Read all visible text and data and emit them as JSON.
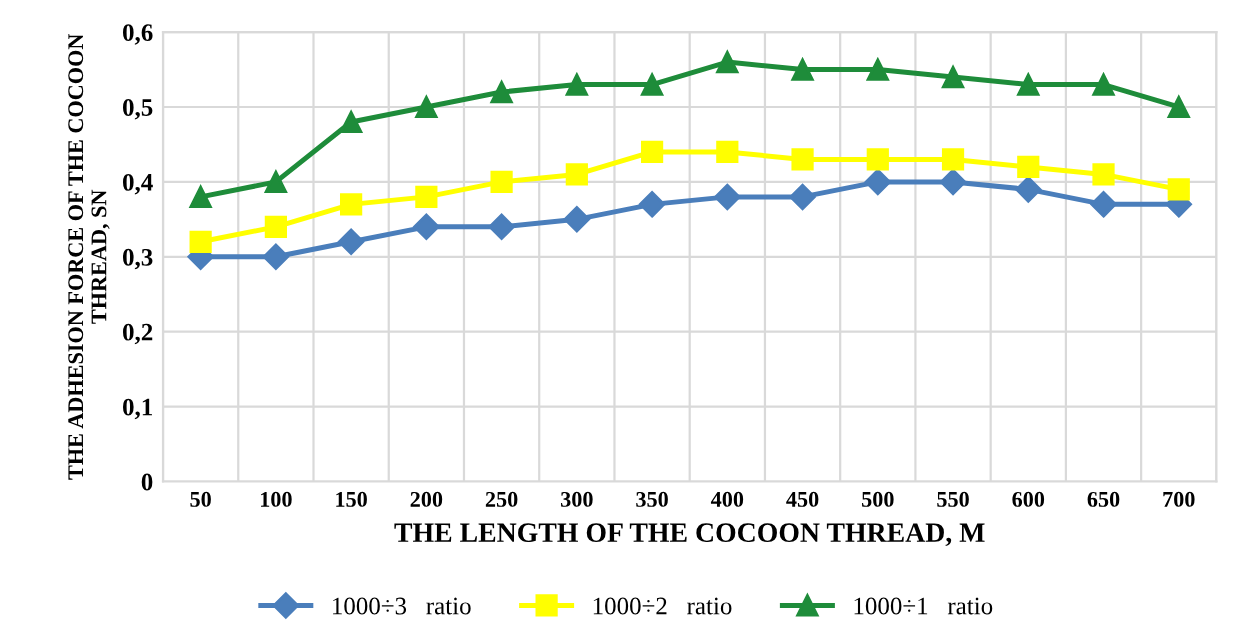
{
  "chart_data": {
    "type": "line",
    "xlabel": "THE LENGTH OF THE COCOON THREAD, M",
    "ylabel": "THE ADHESION FORCE OF THE COCOON\nTHREAD, SN",
    "categories": [
      "50",
      "100",
      "150",
      "200",
      "250",
      "300",
      "350",
      "400",
      "450",
      "500",
      "550",
      "600",
      "650",
      "700"
    ],
    "series": [
      {
        "name": "1000÷3   ratio",
        "color": "#4a7ebb",
        "marker": "diamond",
        "values": [
          0.3,
          0.3,
          0.32,
          0.34,
          0.34,
          0.35,
          0.37,
          0.38,
          0.38,
          0.4,
          0.4,
          0.39,
          0.37,
          0.37
        ]
      },
      {
        "name": "1000÷2   ratio",
        "color": "#ffff00",
        "marker": "square",
        "values": [
          0.32,
          0.34,
          0.37,
          0.38,
          0.4,
          0.41,
          0.44,
          0.44,
          0.43,
          0.43,
          0.43,
          0.42,
          0.41,
          0.39
        ]
      },
      {
        "name": "1000÷1   ratio",
        "color": "#1e8c3a",
        "marker": "triangle",
        "values": [
          0.38,
          0.4,
          0.48,
          0.5,
          0.52,
          0.53,
          0.53,
          0.56,
          0.55,
          0.55,
          0.54,
          0.53,
          0.53,
          0.5
        ]
      }
    ],
    "ylim": [
      0,
      0.6
    ],
    "yticks": [
      {
        "value": 0,
        "label": "0"
      },
      {
        "value": 0.1,
        "label": "0,1"
      },
      {
        "value": 0.2,
        "label": "0,2"
      },
      {
        "value": 0.3,
        "label": "0,3"
      },
      {
        "value": 0.4,
        "label": "0,4"
      },
      {
        "value": 0.5,
        "label": "0,5"
      },
      {
        "value": 0.6,
        "label": "0,6"
      }
    ],
    "grid": true,
    "legend": "bottom",
    "line_style": "solid"
  }
}
